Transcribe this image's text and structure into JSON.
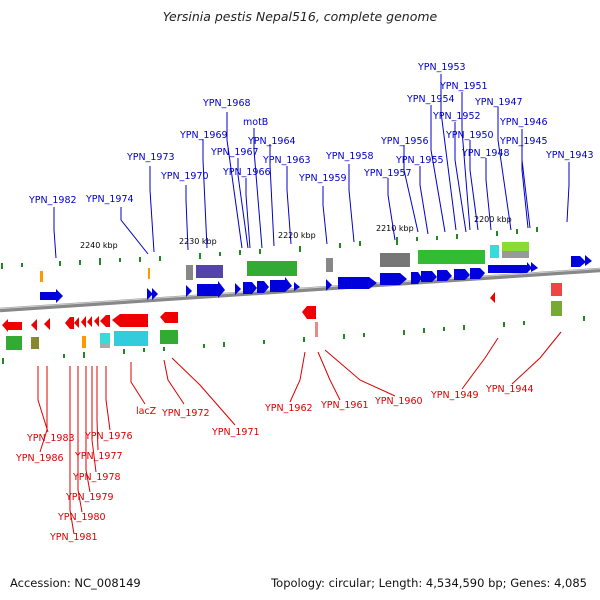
{
  "header": {
    "title": "Yersinia pestis Nepal516, complete genome"
  },
  "footer": {
    "accession": "Accession: NC_008149",
    "summary": "Topology: circular; Length: 4,534,590 bp; Genes: 4,085"
  },
  "colors": {
    "forward_gene": "#0000dd",
    "reverse_gene": "#ee0000",
    "forward_label": "#0000cc",
    "reverse_label": "#dd0000",
    "tick": "#228822",
    "backbone": "#888888"
  },
  "scale_labels": [
    "2240 kbp",
    "2230 kbp",
    "2220 kbp",
    "2210 kbp",
    "2200 kbp"
  ],
  "forward_labels": [
    "YPN_1953",
    "YPN_1951",
    "YPN_1954",
    "YPN_1952",
    "YPN_1947",
    "YPN_1968",
    "YPN_1946",
    "YPN_1950",
    "motB",
    "YPN_1969",
    "YPN_1956",
    "YPN_1945",
    "YPN_1967",
    "YPN_1964",
    "YPN_1958",
    "YPN_1955",
    "YPN_1948",
    "YPN_1943",
    "YPN_1973",
    "YPN_1966",
    "YPN_1963",
    "YPN_1957",
    "YPN_1970",
    "YPN_1959",
    "YPN_1982",
    "YPN_1974"
  ],
  "reverse_labels": [
    "lacZ",
    "YPN_1972",
    "YPN_1962",
    "YPN_1961",
    "YPN_1960",
    "YPN_1949",
    "YPN_1944",
    "YPN_1971",
    "YPN_1983",
    "YPN_1976",
    "YPN_1986",
    "YPN_1977",
    "YPN_1978",
    "YPN_1979",
    "YPN_1980",
    "YPN_1981"
  ]
}
